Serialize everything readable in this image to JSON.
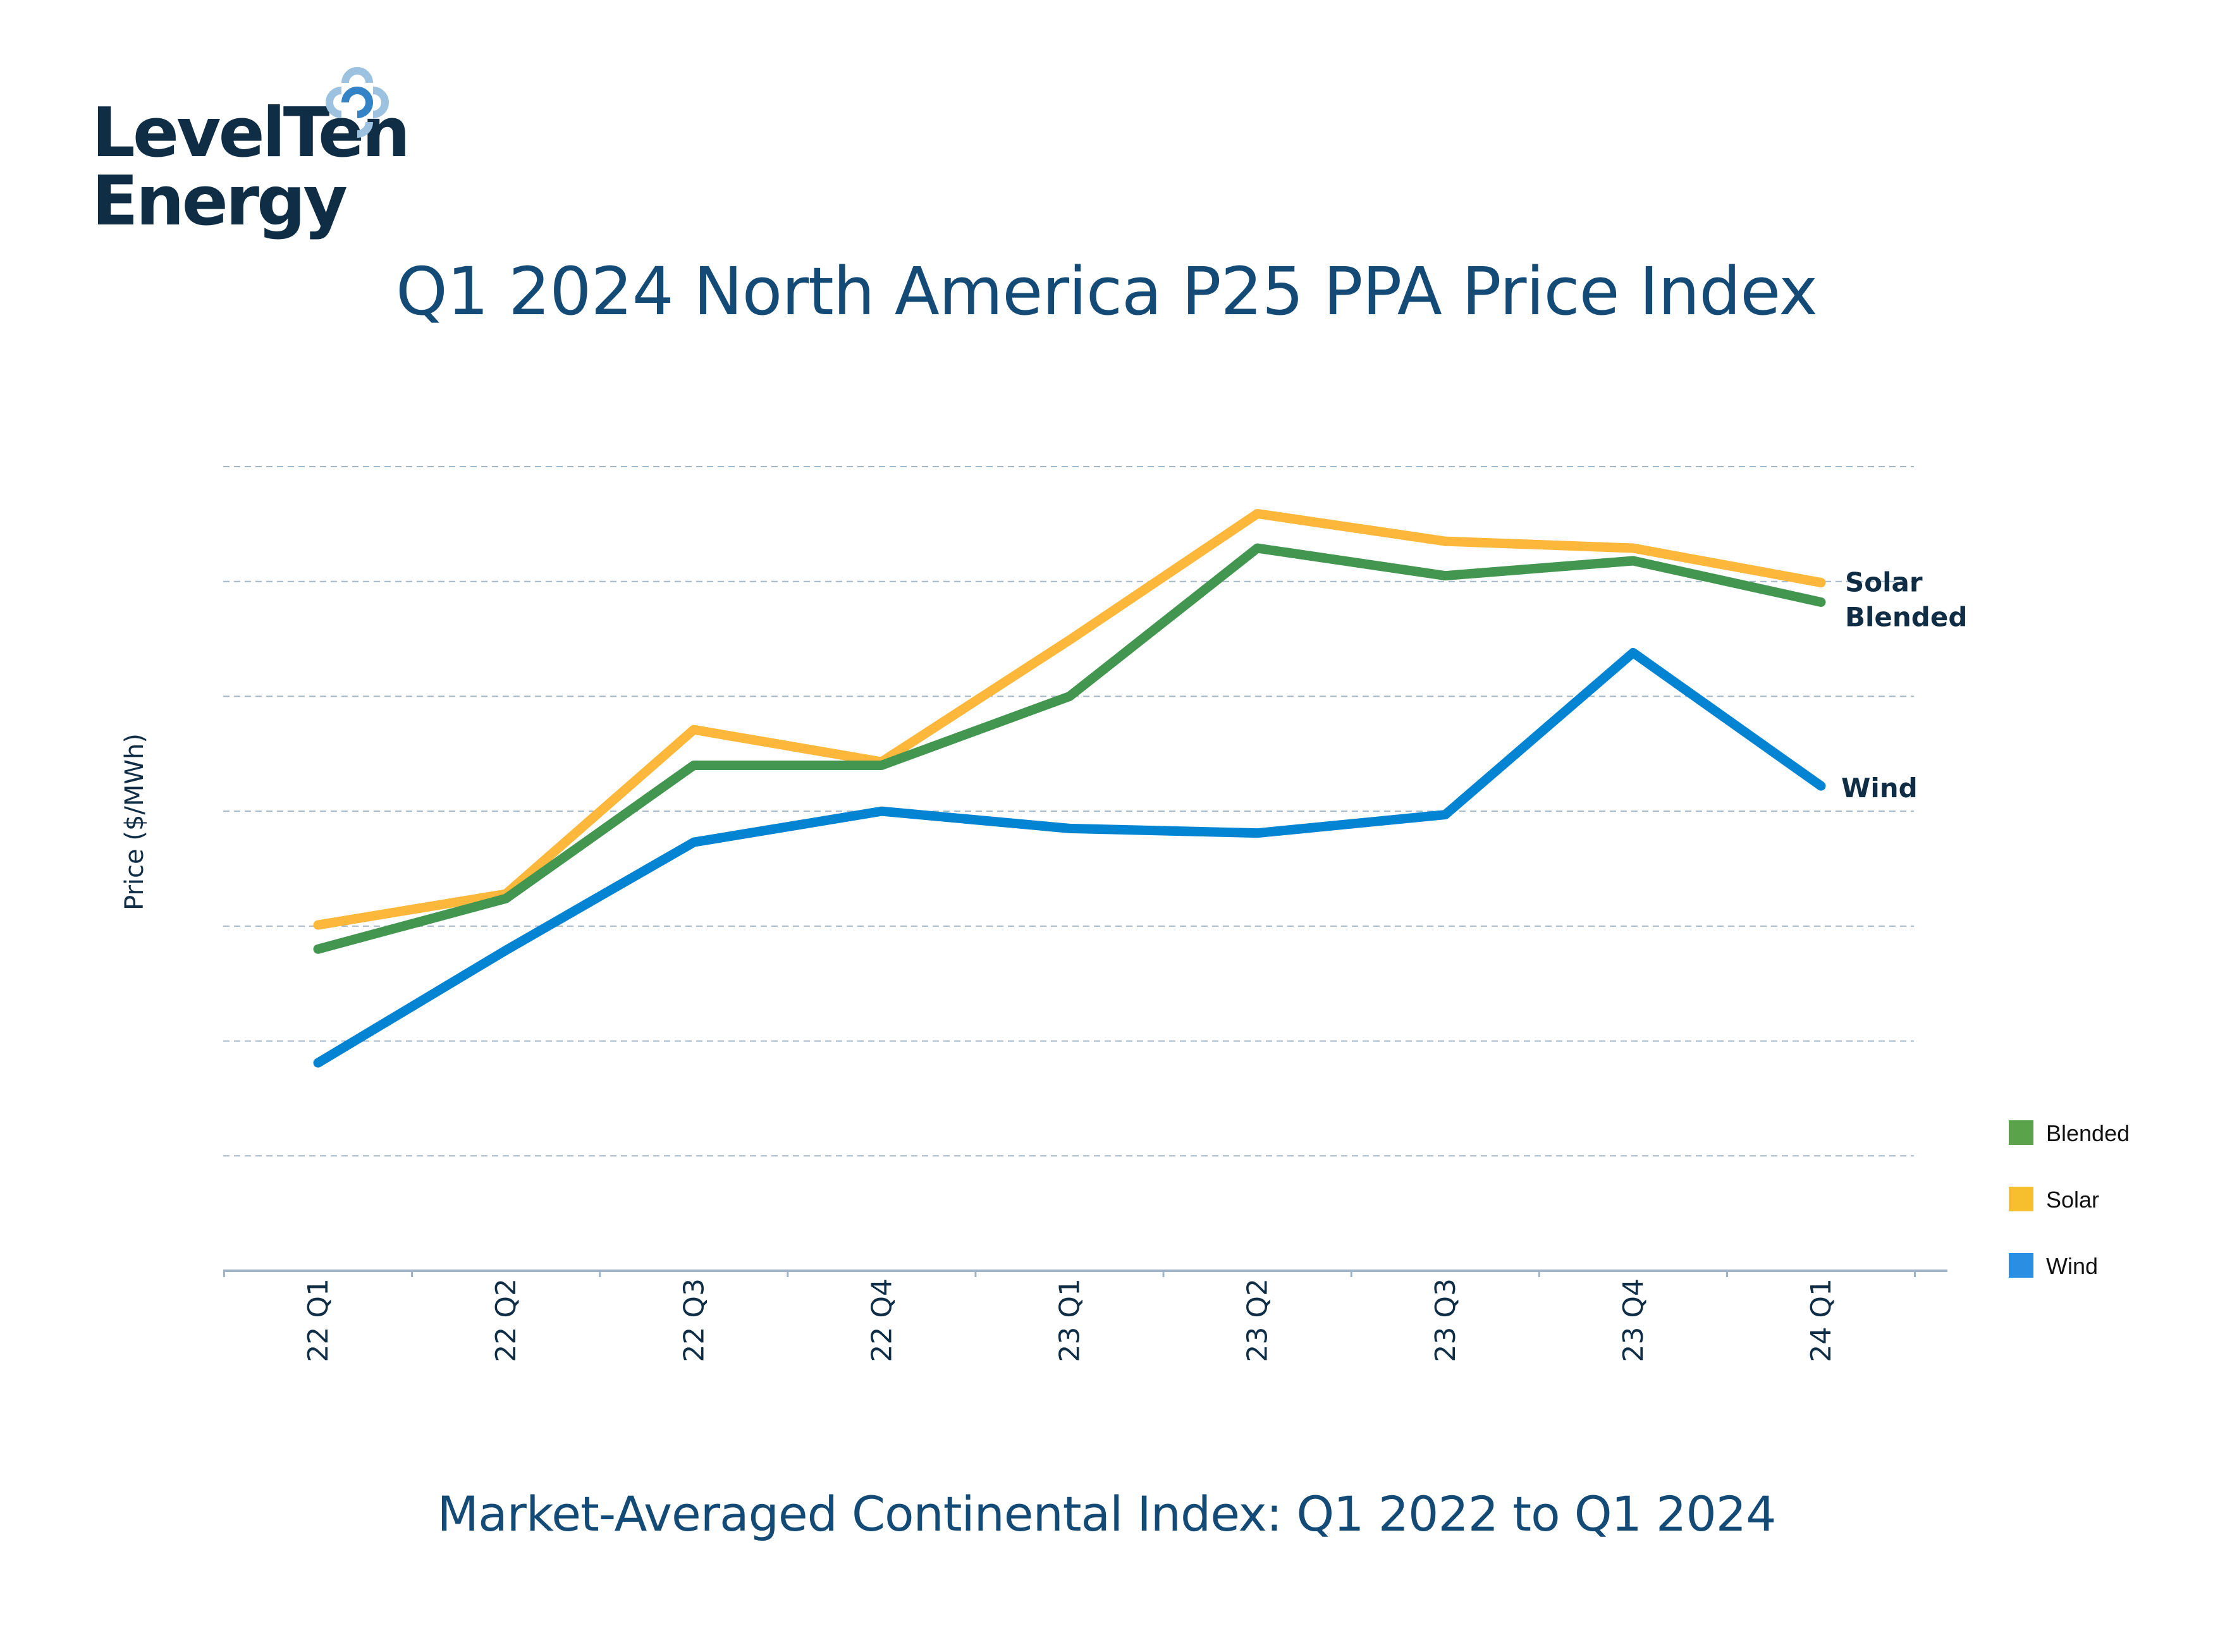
{
  "brand": {
    "line1": "LevelTen",
    "line2": "Energy",
    "mark_colors": {
      "outer": "#9cc2e0",
      "inner": "#3483c6"
    }
  },
  "chart_data": {
    "type": "line",
    "title": "Q1 2024 North America P25 PPA Price Index",
    "subtitle": "Market-Averaged Continental Index: Q1 2022 to Q1 2024",
    "xlabel": "",
    "ylabel": "Price ($/MWh)",
    "categories": [
      "22 Q1",
      "22 Q2",
      "22 Q3",
      "22 Q4",
      "23 Q1",
      "23 Q2",
      "23 Q3",
      "23 Q4",
      "24 Q1"
    ],
    "y_tick_labels_shown": false,
    "ylim": [
      0,
      7
    ],
    "gridlines": [
      1,
      2,
      3,
      4,
      5,
      6,
      7
    ],
    "grid": true,
    "series": [
      {
        "name": "Solar",
        "color": "#fdb73a",
        "end_label": "Solar",
        "values": [
          3.01,
          3.28,
          4.71,
          4.43,
          5.49,
          6.59,
          6.35,
          6.29,
          5.99
        ]
      },
      {
        "name": "Blended",
        "color": "#43964f",
        "end_label": "Blended",
        "values": [
          2.8,
          3.24,
          4.4,
          4.4,
          5.0,
          6.29,
          6.05,
          6.18,
          5.82
        ]
      },
      {
        "name": "Wind",
        "color": "#0284d3",
        "end_label": "Wind",
        "values": [
          1.81,
          2.79,
          3.73,
          4.0,
          3.85,
          3.81,
          3.97,
          5.38,
          4.22
        ]
      }
    ],
    "legend": {
      "placement": "bottom-right",
      "items": [
        {
          "label": "Blended",
          "color": "#5ba34a"
        },
        {
          "label": "Solar",
          "color": "#f7be2e"
        },
        {
          "label": "Wind",
          "color": "#2a8ee3"
        }
      ]
    }
  }
}
